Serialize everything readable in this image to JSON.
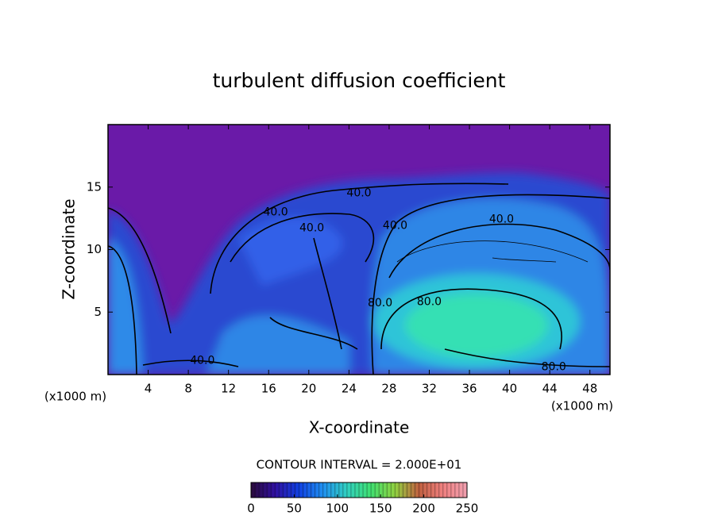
{
  "chart_data": {
    "type": "contour",
    "title": "turbulent diffusion coefficient",
    "xlabel": "X-coordinate",
    "ylabel": "Z-coordinate",
    "x_unit_label": "(x1000 m)",
    "xlim": [
      0,
      50
    ],
    "ylim": [
      0,
      20
    ],
    "xticks": [
      4,
      8,
      12,
      16,
      20,
      24,
      28,
      32,
      36,
      40,
      44,
      48
    ],
    "yticks": [
      5,
      10,
      15
    ],
    "contour_interval_label": "CONTOUR INTERVAL = 2.000E+01",
    "contour_labels": [
      {
        "x": 16.7,
        "z": 13.0,
        "label": "40.0"
      },
      {
        "x": 20.3,
        "z": 11.7,
        "label": "40.0"
      },
      {
        "x": 25.0,
        "z": 14.5,
        "label": "40.0"
      },
      {
        "x": 28.6,
        "z": 11.9,
        "label": "40.0"
      },
      {
        "x": 39.2,
        "z": 12.4,
        "label": "40.0"
      },
      {
        "x": 27.1,
        "z": 5.7,
        "label": "80.0"
      },
      {
        "x": 32.0,
        "z": 5.8,
        "label": "80.0"
      },
      {
        "x": 9.4,
        "z": 1.1,
        "label": "40.0"
      },
      {
        "x": 44.4,
        "z": 0.6,
        "label": "80.0"
      }
    ],
    "colorbar": {
      "lim": [
        0,
        250
      ],
      "ticks": [
        0,
        50,
        100,
        150,
        200,
        250
      ],
      "colors": [
        "#2a0a3a",
        "#3010a0",
        "#1040e0",
        "#2090f0",
        "#30d0c0",
        "#40e070",
        "#90d040",
        "#c06040",
        "#f08080",
        "#f0a0b0"
      ]
    }
  }
}
